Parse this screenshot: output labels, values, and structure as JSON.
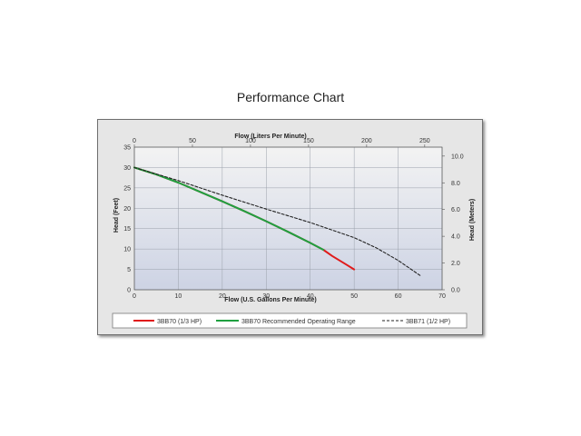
{
  "page_title": "Performance Chart",
  "colors": {
    "series_3bb70": "#e01b1b",
    "series_range": "#1fa040",
    "series_3bb71": "#222222",
    "frame_bg": "#e6e6e6",
    "plot_bg_top": "#f3f3f3",
    "plot_bg_bottom": "#cdd3e4",
    "grid": "#9aa0aa"
  },
  "chart_data": {
    "type": "line",
    "title": "",
    "xlabel": "Flow (U.S. Gallons Per Minute)",
    "x2label": "Flow (Liters Per Minute)",
    "ylabel": "Head (Feet)",
    "y2label": "Head (Meters)",
    "xlim": [
      0,
      70
    ],
    "ylim": [
      0,
      35
    ],
    "x2lim": [
      0,
      264.979
    ],
    "y2lim": [
      0,
      10.668
    ],
    "xticks": [
      "0",
      "10",
      "20",
      "30",
      "40",
      "50",
      "60",
      "70"
    ],
    "yticks": [
      "0",
      "5",
      "10",
      "15",
      "20",
      "25",
      "30",
      "35"
    ],
    "x2ticks": [
      "0",
      "50",
      "100",
      "150",
      "200",
      "250"
    ],
    "y2ticks": [
      "0.0",
      "2.0",
      "4.0",
      "6.0",
      "8.0",
      "10.0"
    ],
    "grid": true,
    "legend_position": "bottom",
    "series": [
      {
        "name": "3BB70 (1/3 HP)",
        "style": "solid",
        "color": "#e01b1b",
        "x": [
          0,
          5,
          10,
          15,
          20,
          25,
          30,
          35,
          40,
          43,
          45,
          48,
          50
        ],
        "y": [
          30,
          28.3,
          26.3,
          24,
          21.7,
          19.3,
          16.8,
          14.2,
          11.5,
          9.8,
          8.3,
          6.3,
          5
        ]
      },
      {
        "name": "3BB70 Recommended Operating Range",
        "style": "solid",
        "color": "#1fa040",
        "x": [
          0,
          5,
          10,
          15,
          20,
          25,
          30,
          35,
          40,
          43
        ],
        "y": [
          30,
          28.3,
          26.3,
          24,
          21.7,
          19.3,
          16.8,
          14.2,
          11.5,
          9.8
        ]
      },
      {
        "name": "3BB71 (1/2 HP)",
        "style": "dashed",
        "color": "#222222",
        "x": [
          0,
          10,
          20,
          30,
          40,
          50,
          55,
          60,
          65
        ],
        "y": [
          30,
          26.8,
          23.2,
          19.8,
          16.5,
          12.8,
          10.3,
          7.2,
          3.5
        ]
      }
    ]
  }
}
